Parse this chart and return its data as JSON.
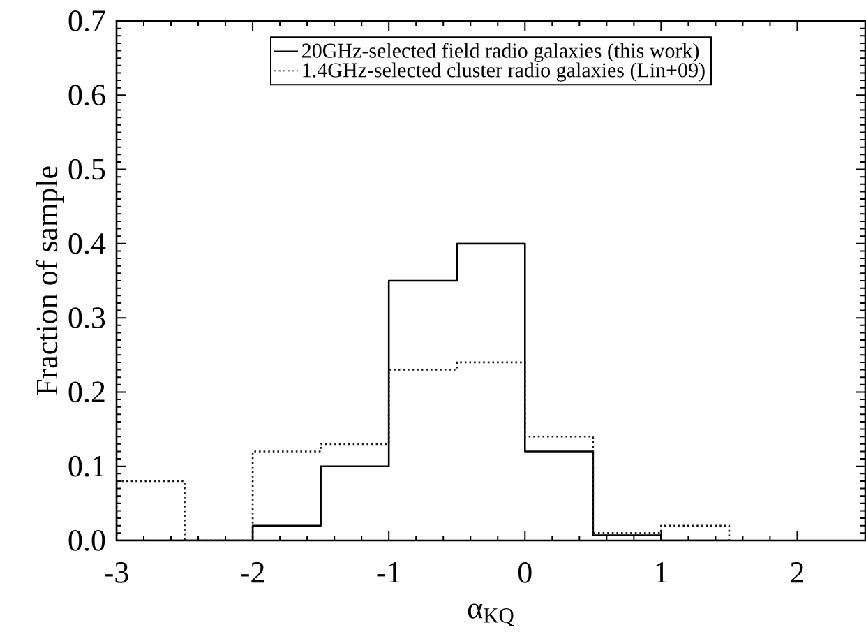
{
  "chart_data": {
    "type": "histogram",
    "xlabel": "α$_{KQ}$",
    "ylabel": "Fraction of sample",
    "xlim": [
      -3,
      2.5
    ],
    "ylim": [
      0,
      0.7
    ],
    "xticks": [
      {
        "value": -3,
        "label": "-3"
      },
      {
        "value": -2,
        "label": "-2"
      },
      {
        "value": -1,
        "label": "-1"
      },
      {
        "value": 0,
        "label": "0"
      },
      {
        "value": 1,
        "label": "1"
      },
      {
        "value": 2,
        "label": "2"
      }
    ],
    "yticks": [
      {
        "value": 0,
        "label": "0.0"
      },
      {
        "value": 0.1,
        "label": "0.1"
      },
      {
        "value": 0.2,
        "label": "0.2"
      },
      {
        "value": 0.3,
        "label": "0.3"
      },
      {
        "value": 0.4,
        "label": "0.4"
      },
      {
        "value": 0.5,
        "label": "0.5"
      },
      {
        "value": 0.6,
        "label": "0.6"
      },
      {
        "value": 0.7,
        "label": "0.7"
      }
    ],
    "legend": "top",
    "bins": [
      -3,
      -2.5,
      -2,
      -1.5,
      -1,
      -0.5,
      0,
      0.5,
      1,
      1.5
    ],
    "series": [
      {
        "name": "20GHz-selected field radio galaxies (this work)",
        "color": "#000000",
        "line_style": "solid",
        "values": [
          0,
          0,
          0.02,
          0.1,
          0.35,
          0.4,
          0.12,
          0.007,
          0
        ]
      },
      {
        "name": "1.4GHz-selected cluster radio galaxies (Lin+09)",
        "color": "#1a1a1a",
        "line_style": "dotted",
        "values": [
          0.08,
          0,
          0.12,
          0.13,
          0.23,
          0.24,
          0.14,
          0.01,
          0.02
        ]
      }
    ]
  }
}
